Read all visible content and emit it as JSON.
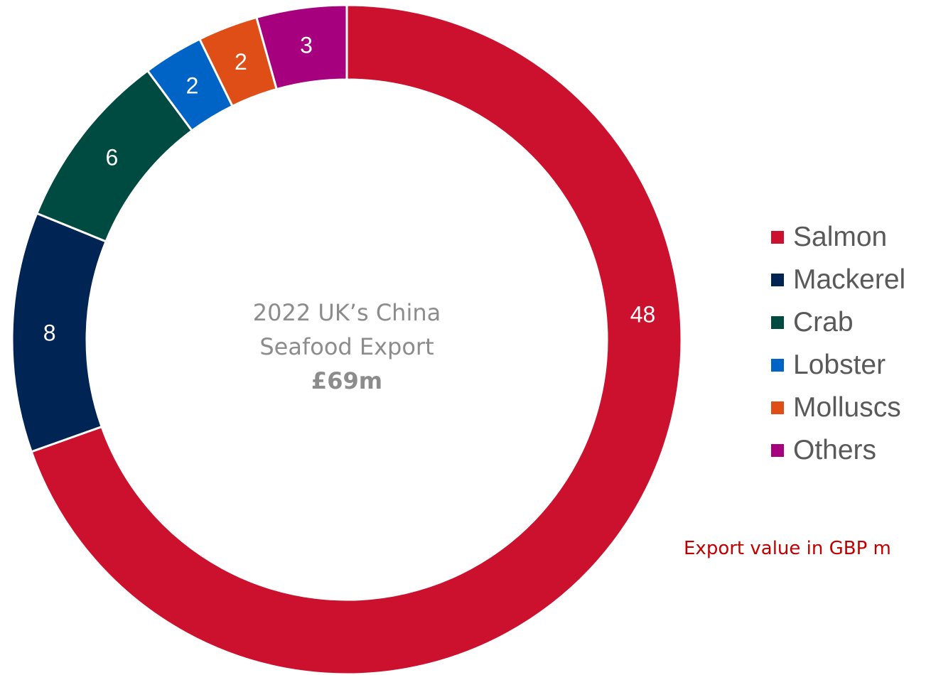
{
  "chart_data": {
    "type": "pie",
    "donut": true,
    "categories": [
      "Salmon",
      "Mackerel",
      "Crab",
      "Lobster",
      "Molluscs",
      "Others"
    ],
    "values": [
      48,
      8,
      6,
      2,
      2,
      3
    ],
    "colors": [
      "#cc112e",
      "#002554",
      "#004b41",
      "#0063c6",
      "#e04e17",
      "#a7007f"
    ],
    "center_text": {
      "line1": "2022 UK’s China",
      "line2": "Seafood Export",
      "total": "£69m"
    },
    "legend": [
      "Salmon",
      "Mackerel",
      "Crab",
      "Lobster",
      "Molluscs",
      "Others"
    ],
    "legend_position": "right",
    "note": "Export value in GBP m",
    "note_color": "#c00000"
  }
}
